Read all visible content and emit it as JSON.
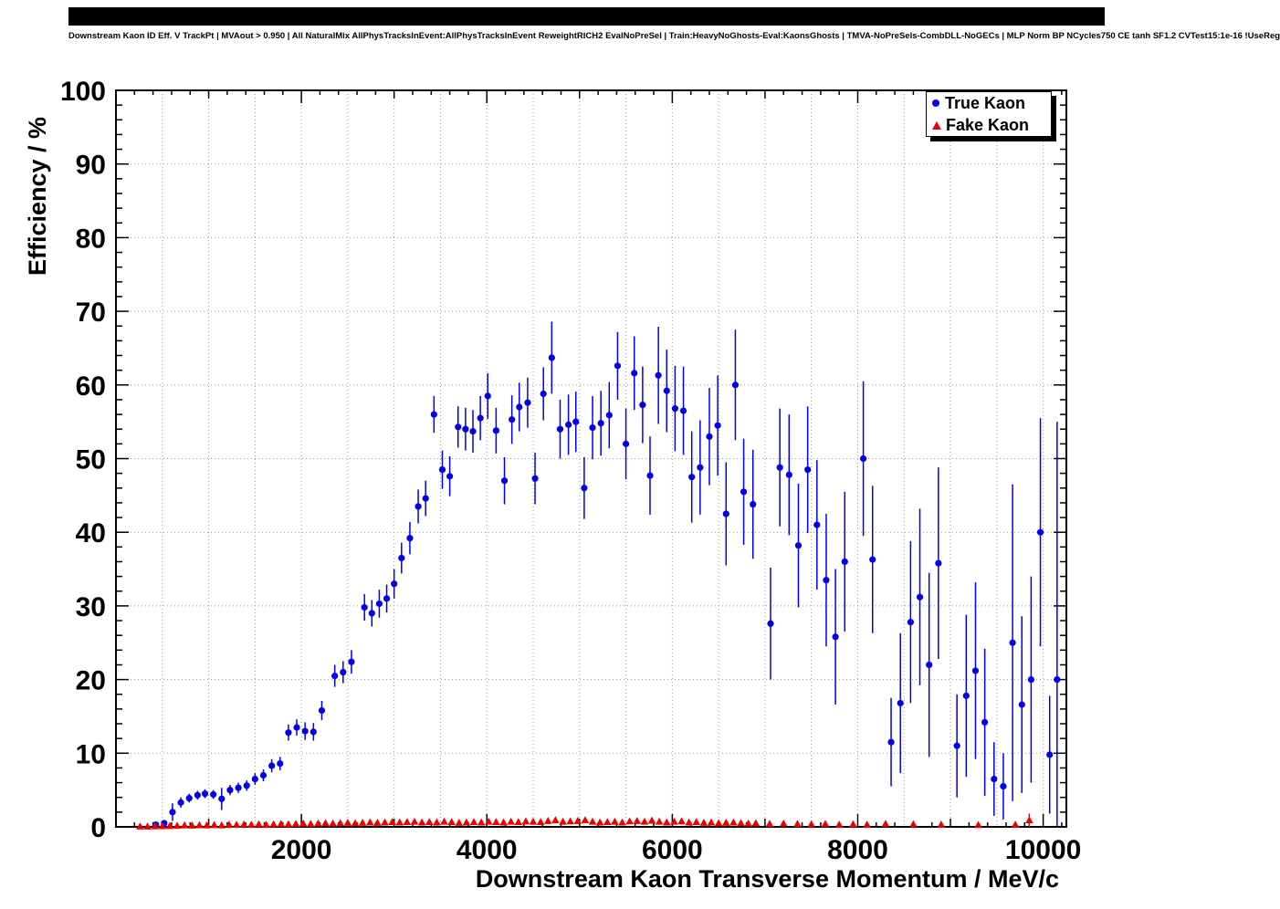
{
  "chart_data": {
    "type": "scatter",
    "title": "Downstream Kaon ID Eff. V TrackPt | MVAout > 0.950 | All NaturalMix AllPhysTracksInEvent:AllPhysTracksInEvent ReweightRICH2 EvalNoPreSel | Train:HeavyNoGhosts-Eval:KaonsGhosts | TMVA-NoPreSels-CombDLL-NoGECs | MLP Norm BP NCycles750 CE tanh SF1.2 CVTest15:1e-16 !UseReg",
    "xlabel": "Downstream Kaon Transverse Momentum / MeV/c",
    "ylabel": "Efficiency / %",
    "xlim": [
      0,
      10250
    ],
    "ylim": [
      0,
      100
    ],
    "xticks": [
      2000,
      4000,
      6000,
      8000,
      10000
    ],
    "yticks": [
      0,
      10,
      20,
      30,
      40,
      50,
      60,
      70,
      80,
      90,
      100
    ],
    "grid": {
      "on": true,
      "x_step": 500,
      "y_step": 10
    },
    "legend_position": "top-right",
    "series": [
      {
        "name": "True Kaon",
        "marker": "circle",
        "color": "#0000ee",
        "points": [
          [
            430,
            0.3,
            0.3
          ],
          [
            520,
            0.5,
            0.4
          ],
          [
            610,
            2.0,
            1.2
          ],
          [
            700,
            3.3,
            0.7
          ],
          [
            790,
            3.9,
            0.6
          ],
          [
            880,
            4.3,
            0.6
          ],
          [
            960,
            4.5,
            0.6
          ],
          [
            1050,
            4.4,
            0.6
          ],
          [
            1140,
            3.8,
            1.5
          ],
          [
            1230,
            5.0,
            0.7
          ],
          [
            1320,
            5.3,
            0.7
          ],
          [
            1410,
            5.6,
            0.7
          ],
          [
            1500,
            6.5,
            0.8
          ],
          [
            1590,
            7.0,
            0.8
          ],
          [
            1680,
            8.3,
            0.9
          ],
          [
            1770,
            8.6,
            0.9
          ],
          [
            1860,
            12.8,
            1.1
          ],
          [
            1950,
            13.5,
            1.1
          ],
          [
            2040,
            13.0,
            1.2
          ],
          [
            2130,
            12.9,
            1.2
          ],
          [
            2220,
            15.8,
            1.3
          ],
          [
            2360,
            20.5,
            1.5
          ],
          [
            2450,
            21.0,
            1.5
          ],
          [
            2540,
            22.4,
            1.6
          ],
          [
            2680,
            29.8,
            1.8
          ],
          [
            2760,
            29.0,
            1.8
          ],
          [
            2840,
            30.3,
            1.9
          ],
          [
            2920,
            31.0,
            1.9
          ],
          [
            3000,
            33.0,
            2.0
          ],
          [
            3080,
            36.5,
            2.1
          ],
          [
            3170,
            39.2,
            2.2
          ],
          [
            3260,
            43.5,
            2.3
          ],
          [
            3340,
            44.6,
            2.4
          ],
          [
            3430,
            56.0,
            2.5
          ],
          [
            3520,
            48.5,
            2.6
          ],
          [
            3600,
            47.6,
            2.7
          ],
          [
            3690,
            54.3,
            2.8
          ],
          [
            3770,
            54.0,
            2.9
          ],
          [
            3850,
            53.7,
            2.9
          ],
          [
            3930,
            55.5,
            3.0
          ],
          [
            4010,
            58.5,
            3.1
          ],
          [
            4100,
            53.8,
            3.1
          ],
          [
            4190,
            47.0,
            3.2
          ],
          [
            4270,
            55.3,
            3.3
          ],
          [
            4350,
            57.0,
            3.3
          ],
          [
            4440,
            57.6,
            3.4
          ],
          [
            4520,
            47.3,
            3.5
          ],
          [
            4610,
            58.8,
            3.6
          ],
          [
            4700,
            63.7,
            4.9
          ],
          [
            4790,
            54.0,
            4.0
          ],
          [
            4880,
            54.6,
            4.1
          ],
          [
            4960,
            55.0,
            4.1
          ],
          [
            5050,
            46.0,
            4.2
          ],
          [
            5140,
            54.2,
            4.3
          ],
          [
            5230,
            54.8,
            4.4
          ],
          [
            5320,
            55.9,
            4.5
          ],
          [
            5410,
            62.6,
            4.6
          ],
          [
            5500,
            52.0,
            4.8
          ],
          [
            5590,
            61.6,
            5.0
          ],
          [
            5680,
            57.3,
            5.2
          ],
          [
            5760,
            47.7,
            5.3
          ],
          [
            5850,
            61.3,
            6.6
          ],
          [
            5940,
            59.2,
            5.6
          ],
          [
            6030,
            56.8,
            5.8
          ],
          [
            6120,
            56.5,
            6.0
          ],
          [
            6210,
            47.5,
            6.2
          ],
          [
            6300,
            48.8,
            6.4
          ],
          [
            6400,
            53.0,
            6.6
          ],
          [
            6490,
            54.5,
            6.8
          ],
          [
            6580,
            42.5,
            7.0
          ],
          [
            6680,
            60.0,
            7.5
          ],
          [
            6770,
            45.5,
            7.2
          ],
          [
            6870,
            43.8,
            7.4
          ],
          [
            7060,
            27.6,
            7.6
          ],
          [
            7160,
            48.8,
            8.0
          ],
          [
            7260,
            47.8,
            8.2
          ],
          [
            7360,
            38.2,
            8.4
          ],
          [
            7460,
            48.5,
            8.6
          ],
          [
            7560,
            41.0,
            8.8
          ],
          [
            7660,
            33.5,
            9.0
          ],
          [
            7760,
            25.8,
            9.2
          ],
          [
            7860,
            36.0,
            9.5
          ],
          [
            8060,
            50.0,
            10.5
          ],
          [
            8160,
            36.3,
            10.0
          ],
          [
            8360,
            11.5,
            6.0
          ],
          [
            8460,
            16.8,
            9.5
          ],
          [
            8570,
            27.8,
            11.0
          ],
          [
            8670,
            31.2,
            12.0
          ],
          [
            8770,
            22.0,
            12.5
          ],
          [
            8870,
            35.8,
            13.0
          ],
          [
            9070,
            11.0,
            7.0
          ],
          [
            9170,
            17.8,
            11.0
          ],
          [
            9270,
            21.2,
            12.0
          ],
          [
            9370,
            14.2,
            10.0
          ],
          [
            9470,
            6.5,
            5.0
          ],
          [
            9570,
            5.5,
            4.5
          ],
          [
            9670,
            25.0,
            21.5
          ],
          [
            9770,
            16.6,
            12.0
          ],
          [
            9870,
            20.0,
            14.0
          ],
          [
            9970,
            40.0,
            15.5
          ],
          [
            10070,
            9.8,
            8.0
          ],
          [
            10150,
            20.0,
            35.0
          ]
        ]
      },
      {
        "name": "Fake Kaon",
        "marker": "triangle",
        "color": "#ee0000",
        "points": [
          [
            260,
            0.05,
            0.05
          ],
          [
            340,
            0.05,
            0.05
          ],
          [
            420,
            0.08,
            0.06
          ],
          [
            500,
            0.1,
            0.08
          ],
          [
            580,
            0.12,
            0.1
          ],
          [
            660,
            0.15,
            0.1
          ],
          [
            740,
            0.2,
            0.12
          ],
          [
            820,
            0.18,
            0.1
          ],
          [
            900,
            0.22,
            0.12
          ],
          [
            980,
            0.2,
            0.1
          ],
          [
            1060,
            0.25,
            0.12
          ],
          [
            1140,
            0.2,
            0.1
          ],
          [
            1220,
            0.3,
            0.14
          ],
          [
            1300,
            0.28,
            0.12
          ],
          [
            1380,
            0.32,
            0.14
          ],
          [
            1460,
            0.3,
            0.13
          ],
          [
            1540,
            0.35,
            0.15
          ],
          [
            1620,
            0.3,
            0.13
          ],
          [
            1700,
            0.35,
            0.15
          ],
          [
            1780,
            0.4,
            0.16
          ],
          [
            1860,
            0.35,
            0.14
          ],
          [
            1940,
            0.4,
            0.15
          ],
          [
            2020,
            0.45,
            0.16
          ],
          [
            2100,
            0.4,
            0.15
          ],
          [
            2180,
            0.45,
            0.16
          ],
          [
            2260,
            0.5,
            0.18
          ],
          [
            2340,
            0.45,
            0.16
          ],
          [
            2420,
            0.5,
            0.17
          ],
          [
            2500,
            0.55,
            0.18
          ],
          [
            2580,
            0.5,
            0.17
          ],
          [
            2660,
            0.55,
            0.18
          ],
          [
            2740,
            0.6,
            0.2
          ],
          [
            2820,
            0.55,
            0.18
          ],
          [
            2900,
            0.6,
            0.2
          ],
          [
            2980,
            0.65,
            0.2
          ],
          [
            3060,
            0.6,
            0.2
          ],
          [
            3140,
            0.65,
            0.22
          ],
          [
            3220,
            0.7,
            0.22
          ],
          [
            3300,
            0.6,
            0.2
          ],
          [
            3380,
            0.65,
            0.22
          ],
          [
            3460,
            0.6,
            0.2
          ],
          [
            3540,
            0.7,
            0.24
          ],
          [
            3620,
            0.65,
            0.22
          ],
          [
            3700,
            0.55,
            0.2
          ],
          [
            3780,
            0.6,
            0.22
          ],
          [
            3860,
            0.65,
            0.24
          ],
          [
            3940,
            0.6,
            0.22
          ],
          [
            4020,
            0.7,
            0.25
          ],
          [
            4100,
            0.65,
            0.24
          ],
          [
            4180,
            0.6,
            0.22
          ],
          [
            4260,
            0.7,
            0.26
          ],
          [
            4340,
            0.65,
            0.24
          ],
          [
            4420,
            0.75,
            0.28
          ],
          [
            4500,
            0.7,
            0.26
          ],
          [
            4580,
            0.65,
            0.25
          ],
          [
            4660,
            0.8,
            0.3
          ],
          [
            4740,
            0.9,
            0.32
          ],
          [
            4820,
            0.7,
            0.28
          ],
          [
            4900,
            0.75,
            0.3
          ],
          [
            4980,
            0.8,
            0.32
          ],
          [
            5060,
            0.9,
            0.35
          ],
          [
            5140,
            0.7,
            0.3
          ],
          [
            5220,
            0.6,
            0.28
          ],
          [
            5300,
            0.65,
            0.3
          ],
          [
            5380,
            0.7,
            0.32
          ],
          [
            5460,
            0.6,
            0.3
          ],
          [
            5540,
            0.75,
            0.34
          ],
          [
            5620,
            0.8,
            0.36
          ],
          [
            5700,
            0.7,
            0.34
          ],
          [
            5780,
            0.85,
            0.38
          ],
          [
            5860,
            0.7,
            0.35
          ],
          [
            5940,
            0.6,
            0.32
          ],
          [
            6020,
            0.7,
            0.36
          ],
          [
            6100,
            0.75,
            0.38
          ],
          [
            6180,
            0.6,
            0.34
          ],
          [
            6260,
            0.65,
            0.36
          ],
          [
            6340,
            0.55,
            0.34
          ],
          [
            6420,
            0.6,
            0.36
          ],
          [
            6500,
            0.5,
            0.34
          ],
          [
            6580,
            0.55,
            0.36
          ],
          [
            6660,
            0.6,
            0.38
          ],
          [
            6740,
            0.5,
            0.36
          ],
          [
            6820,
            0.45,
            0.34
          ],
          [
            6900,
            0.5,
            0.38
          ],
          [
            7050,
            0.4,
            0.35
          ],
          [
            7200,
            0.45,
            0.4
          ],
          [
            7350,
            0.4,
            0.38
          ],
          [
            7500,
            0.35,
            0.35
          ],
          [
            7650,
            0.4,
            0.4
          ],
          [
            7800,
            0.3,
            0.3
          ],
          [
            7950,
            0.35,
            0.35
          ],
          [
            8100,
            0.3,
            0.3
          ],
          [
            8300,
            0.4,
            0.4
          ],
          [
            8600,
            0.35,
            0.35
          ],
          [
            8900,
            0.3,
            0.3
          ],
          [
            9300,
            0.25,
            0.25
          ],
          [
            9700,
            0.3,
            0.3
          ],
          [
            9850,
            0.9,
            0.9
          ]
        ]
      }
    ]
  }
}
